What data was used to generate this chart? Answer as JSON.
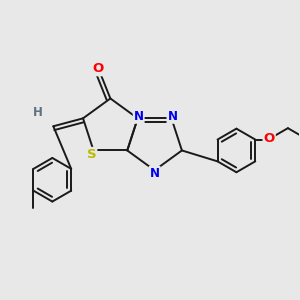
{
  "background_color": "#e8e8e8",
  "bond_color": "#1a1a1a",
  "bond_width": 1.4,
  "atom_colors": {
    "O": "#ff0000",
    "N": "#0000ee",
    "S": "#bbbb00",
    "H": "#607080"
  },
  "font_size": 8.5,
  "figsize": [
    3.0,
    3.0
  ],
  "dpi": 100,
  "xlim": [
    0,
    3.0
  ],
  "ylim": [
    0,
    3.0
  ]
}
